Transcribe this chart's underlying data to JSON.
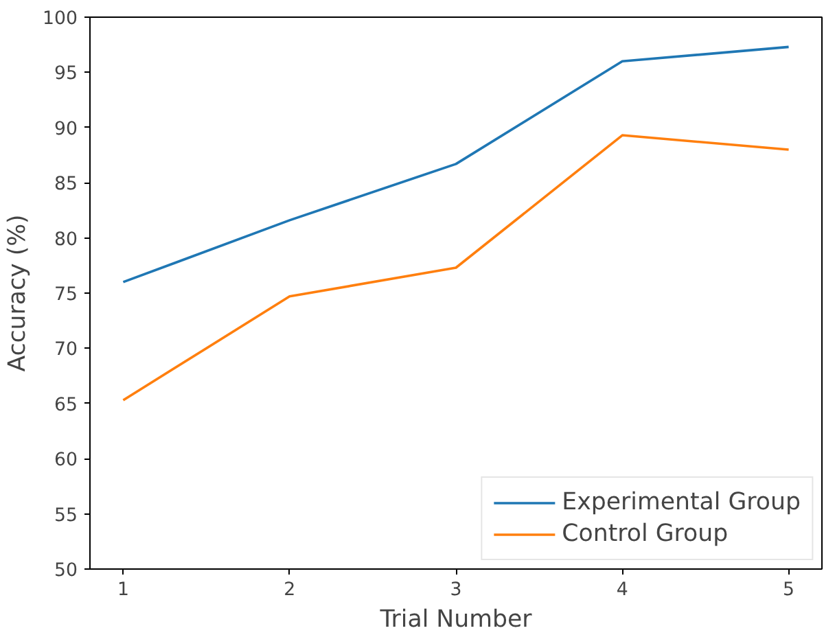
{
  "chart_data": {
    "type": "line",
    "xlabel": "Trial Number",
    "ylabel": "Accuracy (%)",
    "x": [
      1,
      2,
      3,
      4,
      5
    ],
    "series": [
      {
        "name": "Experimental Group",
        "color": "#1f77b4",
        "values": [
          76,
          81.6,
          86.7,
          96,
          97.3
        ]
      },
      {
        "name": "Control Group",
        "color": "#ff7f0e",
        "values": [
          65.3,
          74.7,
          77.3,
          89.3,
          88
        ]
      }
    ],
    "xlim": [
      0.8,
      5.2
    ],
    "xticks": [
      1,
      2,
      3,
      4,
      5
    ],
    "ylim": [
      50,
      100
    ],
    "yticks": [
      50,
      55,
      60,
      65,
      70,
      75,
      80,
      85,
      90,
      95,
      100
    ],
    "grid": false,
    "legend": "bottom right",
    "marker": "none",
    "line_style": "solid"
  }
}
